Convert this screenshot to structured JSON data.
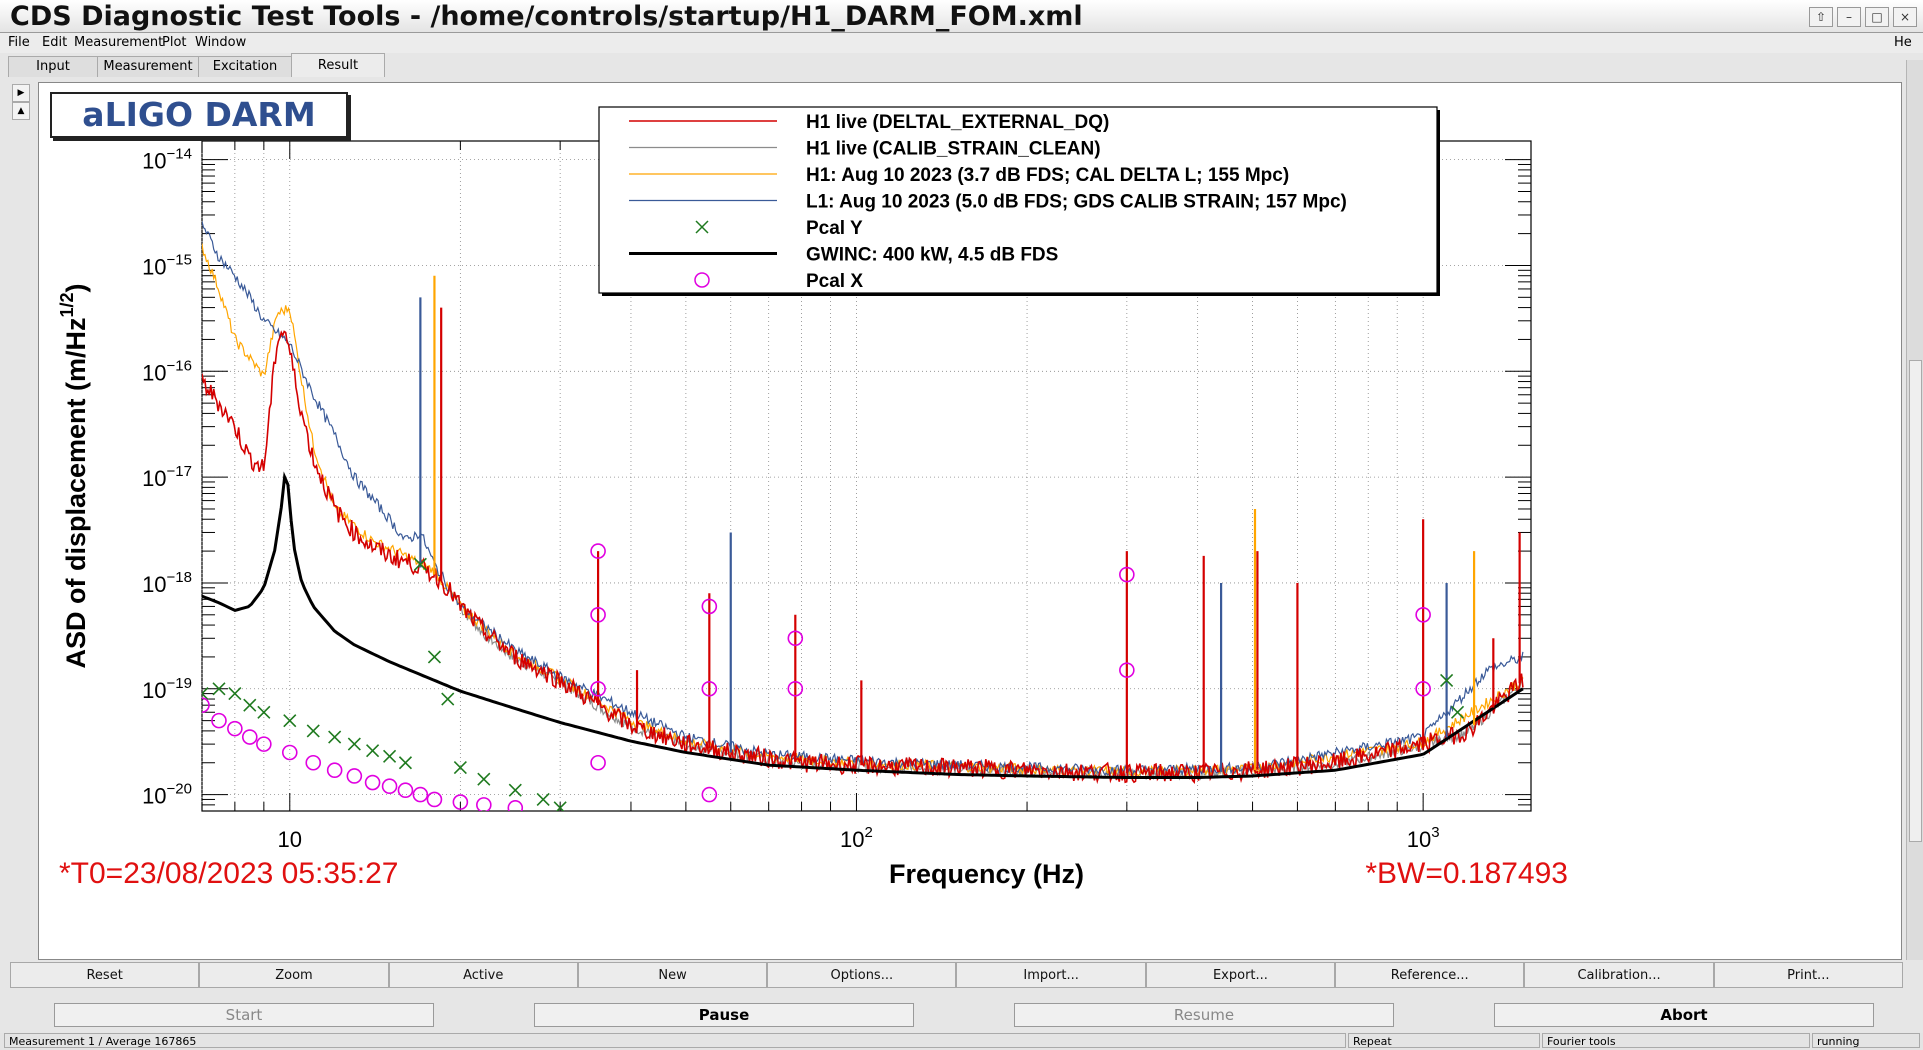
{
  "window": {
    "title": "CDS Diagnostic Test Tools - /home/controls/startup/H1_DARM_FOM.xml",
    "buttons": [
      "⇧",
      "–",
      "□",
      "×"
    ]
  },
  "menu": {
    "file": "File",
    "edit": "Edit",
    "measurement": "Measurement",
    "plot": "Plot",
    "window": "Window",
    "help": "He"
  },
  "tabs": [
    "Input",
    "Measurement",
    "Excitation",
    "Result"
  ],
  "plot_label": "aLIGO DARM",
  "annotations": {
    "t0": "*T0=23/08/2023 05:35:27",
    "bw": "*BW=0.187493"
  },
  "chart_data": {
    "type": "line",
    "title": "",
    "xlabel": "Frequency (Hz)",
    "ylabel": "ASD of displacement (m/Hz",
    "ylabel_sup": "1/2",
    "ylabel_tail": ")",
    "xscale": "log",
    "yscale": "log",
    "xlim": [
      7,
      1550
    ],
    "ylim": [
      7e-21,
      1.5e-14
    ],
    "grid": true,
    "legend_position": "top-center",
    "x_ticks": [
      {
        "value": 10,
        "base": "10",
        "exp": ""
      },
      {
        "value": 100,
        "base": "10",
        "exp": "2"
      },
      {
        "value": 1000,
        "base": "10",
        "exp": "3"
      }
    ],
    "y_ticks": [
      {
        "value": 1e-14,
        "base": "10",
        "exp": "−14"
      },
      {
        "value": 1e-15,
        "base": "10",
        "exp": "−15"
      },
      {
        "value": 1e-16,
        "base": "10",
        "exp": "−16"
      },
      {
        "value": 1e-17,
        "base": "10",
        "exp": "−17"
      },
      {
        "value": 1e-18,
        "base": "10",
        "exp": "−18"
      },
      {
        "value": 1e-19,
        "base": "10",
        "exp": "−19"
      },
      {
        "value": 1e-20,
        "base": "10",
        "exp": "−20"
      }
    ],
    "series": [
      {
        "name": "H1 live (DELTAL_EXTERNAL_DQ)",
        "color": "#d40000",
        "style": "line",
        "width": 1.6,
        "x": [
          7,
          7.5,
          8,
          8.5,
          9,
          9.5,
          9.8,
          10,
          10.5,
          11,
          12,
          13,
          14,
          15,
          16,
          17,
          18,
          19,
          20,
          22,
          25,
          30,
          35,
          40,
          50,
          60,
          70,
          80,
          100,
          130,
          150,
          200,
          300,
          400,
          500,
          700,
          1000,
          1200,
          1500
        ],
        "y": [
          8e-17,
          5e-17,
          3e-17,
          1.5e-17,
          1.2e-17,
          2e-16,
          2.5e-16,
          1.5e-16,
          4e-17,
          1.5e-17,
          5e-18,
          3e-18,
          2.2e-18,
          1.8e-18,
          1.6e-18,
          1.4e-18,
          1.2e-18,
          9e-19,
          6e-19,
          3.5e-19,
          2e-19,
          1.2e-19,
          7e-20,
          4.5e-20,
          3e-20,
          2.5e-20,
          2.2e-20,
          2e-20,
          1.9e-20,
          1.8e-20,
          1.8e-20,
          1.7e-20,
          1.6e-20,
          1.6e-20,
          1.7e-20,
          2e-20,
          3e-20,
          4e-20,
          1.2e-19
        ]
      },
      {
        "name": "H1 live (CALIB_STRAIN_CLEAN)",
        "color": "#8c8c8c",
        "style": "line",
        "width": 1.2,
        "x": [
          20,
          22,
          25,
          30,
          35,
          40,
          50,
          60,
          70,
          80,
          100,
          130,
          150,
          200,
          300,
          400,
          500,
          700,
          1000,
          1200,
          1500
        ],
        "y": [
          5.8e-19,
          3.3e-19,
          1.9e-19,
          1.15e-19,
          6.8e-20,
          4.4e-20,
          2.95e-20,
          2.45e-20,
          2.15e-20,
          1.95e-20,
          1.85e-20,
          1.75e-20,
          1.75e-20,
          1.68e-20,
          1.58e-20,
          1.58e-20,
          1.68e-20,
          1.95e-20,
          2.9e-20,
          3.9e-20,
          1.15e-19
        ]
      },
      {
        "name": "H1: Aug 10 2023 (3.7 dB FDS; CAL DELTA L; 155 Mpc)",
        "color": "#ffa500",
        "style": "line",
        "width": 1.2,
        "x": [
          7,
          7.5,
          8,
          9,
          9.5,
          10,
          10.5,
          11,
          12,
          14,
          16,
          18,
          20,
          25,
          30,
          40,
          50,
          70,
          100,
          150,
          200,
          300,
          500,
          1000,
          1500
        ],
        "y": [
          1.5e-15,
          6e-16,
          2e-16,
          9e-17,
          3.5e-16,
          4e-16,
          8e-17,
          2e-17,
          5e-18,
          2.5e-18,
          1.8e-18,
          1.3e-18,
          6e-19,
          2.1e-19,
          1.25e-19,
          5e-20,
          3.2e-20,
          2.3e-20,
          2e-20,
          1.85e-20,
          1.75e-20,
          1.65e-20,
          1.75e-20,
          3.1e-20,
          1.2e-19
        ]
      },
      {
        "name": "L1: Aug 10 2023 (5.0 dB FDS; GDS CALIB STRAIN; 157 Mpc)",
        "color": "#3a5a98",
        "style": "line",
        "width": 1.2,
        "x": [
          7,
          7.5,
          8,
          8.5,
          9,
          10,
          11,
          12,
          13,
          15,
          16,
          17,
          18,
          20,
          25,
          30,
          40,
          50,
          70,
          100,
          150,
          200,
          300,
          500,
          1000,
          1300,
          1500
        ],
        "y": [
          2.5e-15,
          1.2e-15,
          8e-16,
          5e-16,
          3e-16,
          1.8e-16,
          6e-17,
          2.5e-17,
          1e-17,
          4e-18,
          2.5e-18,
          3e-18,
          1.5e-18,
          6e-19,
          2.3e-19,
          1.3e-19,
          6e-20,
          3.5e-20,
          2.4e-20,
          2.1e-20,
          1.9e-20,
          1.8e-20,
          1.7e-20,
          1.8e-20,
          3.5e-20,
          1.5e-19,
          2e-19
        ]
      },
      {
        "name": "Pcal Y",
        "color": "#1f7a1f",
        "style": "x",
        "x": [
          7,
          7.5,
          8,
          8.5,
          9,
          10,
          11,
          12,
          13,
          14,
          15,
          16,
          17,
          18,
          19,
          20,
          22,
          25,
          28,
          30,
          1100,
          1150
        ],
        "y": [
          9e-20,
          1e-19,
          9e-20,
          7e-20,
          6e-20,
          5e-20,
          4e-20,
          3.5e-20,
          3e-20,
          2.6e-20,
          2.3e-20,
          2e-20,
          1.5e-18,
          2e-19,
          8e-20,
          1.8e-20,
          1.4e-20,
          1.1e-20,
          9e-21,
          7.5e-21,
          1.2e-19,
          6e-20
        ]
      },
      {
        "name": "GWINC: 400 kW, 4.5 dB FDS",
        "color": "#000000",
        "style": "line",
        "width": 3,
        "x": [
          7,
          7.5,
          8,
          8.5,
          9,
          9.4,
          9.7,
          9.85,
          10,
          10.2,
          10.5,
          11,
          12,
          13,
          15,
          18,
          20,
          25,
          30,
          40,
          50,
          70,
          100,
          150,
          200,
          300,
          400,
          500,
          700,
          1000,
          1500
        ],
        "y": [
          7.5e-19,
          6.5e-19,
          5.5e-19,
          6e-19,
          9e-19,
          2e-18,
          6e-18,
          1.4e-17,
          5e-18,
          2e-18,
          1e-18,
          6e-19,
          3.5e-19,
          2.6e-19,
          1.8e-19,
          1.2e-19,
          9.5e-20,
          6.5e-20,
          4.8e-20,
          3.2e-20,
          2.5e-20,
          1.9e-20,
          1.7e-20,
          1.55e-20,
          1.5e-20,
          1.45e-20,
          1.45e-20,
          1.5e-20,
          1.7e-20,
          2.4e-20,
          1e-19
        ]
      },
      {
        "name": "Pcal X",
        "color": "#e000e0",
        "style": "o",
        "x": [
          7,
          7.5,
          8,
          8.5,
          9,
          10,
          11,
          12,
          13,
          14,
          15,
          16,
          17,
          18,
          20,
          22,
          25,
          35,
          35,
          35,
          35,
          55,
          55,
          55,
          78,
          78,
          300,
          300,
          1000,
          1000
        ],
        "y": [
          7e-20,
          5e-20,
          4.2e-20,
          3.5e-20,
          3e-20,
          2.5e-20,
          2e-20,
          1.7e-20,
          1.5e-20,
          1.3e-20,
          1.2e-20,
          1.1e-20,
          1e-20,
          9e-21,
          8.5e-21,
          8e-21,
          7.5e-21,
          2e-18,
          5e-19,
          1e-19,
          2e-20,
          6e-19,
          1e-19,
          1e-20,
          3e-19,
          1e-19,
          1.2e-18,
          1.5e-19,
          5e-19,
          1e-19
        ]
      }
    ],
    "lines": [
      {
        "f": 17,
        "h": 5e-16,
        "c": "#3a5a98"
      },
      {
        "f": 18,
        "h": 8e-16,
        "c": "#ffa500"
      },
      {
        "f": 18.5,
        "h": 4e-16,
        "c": "#d40000"
      },
      {
        "f": 35,
        "h": 2e-18,
        "c": "#d40000"
      },
      {
        "f": 41,
        "h": 1.5e-19,
        "c": "#d40000"
      },
      {
        "f": 55,
        "h": 8e-19,
        "c": "#d40000"
      },
      {
        "f": 60,
        "h": 3e-18,
        "c": "#3a5a98"
      },
      {
        "f": 78,
        "h": 5e-19,
        "c": "#d40000"
      },
      {
        "f": 102,
        "h": 1.2e-19,
        "c": "#d40000"
      },
      {
        "f": 300,
        "h": 2e-18,
        "c": "#d40000"
      },
      {
        "f": 410,
        "h": 1.8e-18,
        "c": "#d40000"
      },
      {
        "f": 440,
        "h": 1e-18,
        "c": "#3a5a98"
      },
      {
        "f": 505,
        "h": 5e-18,
        "c": "#ffa500"
      },
      {
        "f": 510,
        "h": 2e-18,
        "c": "#d40000"
      },
      {
        "f": 600,
        "h": 1e-18,
        "c": "#d40000"
      },
      {
        "f": 1000,
        "h": 4e-18,
        "c": "#d40000"
      },
      {
        "f": 1100,
        "h": 1e-18,
        "c": "#3a5a98"
      },
      {
        "f": 1230,
        "h": 2e-18,
        "c": "#ffa500"
      },
      {
        "f": 1330,
        "h": 3e-19,
        "c": "#d40000"
      },
      {
        "f": 1480,
        "h": 3e-18,
        "c": "#d40000"
      }
    ]
  },
  "buttons": [
    "Reset",
    "Zoom",
    "Active",
    "New",
    "Options...",
    "Import...",
    "Export...",
    "Reference...",
    "Calibration...",
    "Print..."
  ],
  "controls": {
    "start": "Start",
    "pause": "Pause",
    "resume": "Resume",
    "abort": "Abort"
  },
  "statusbar": {
    "measurement": "Measurement 1 / Average 167865",
    "repeat": "Repeat",
    "tool": "Fourier tools",
    "state": "running"
  }
}
